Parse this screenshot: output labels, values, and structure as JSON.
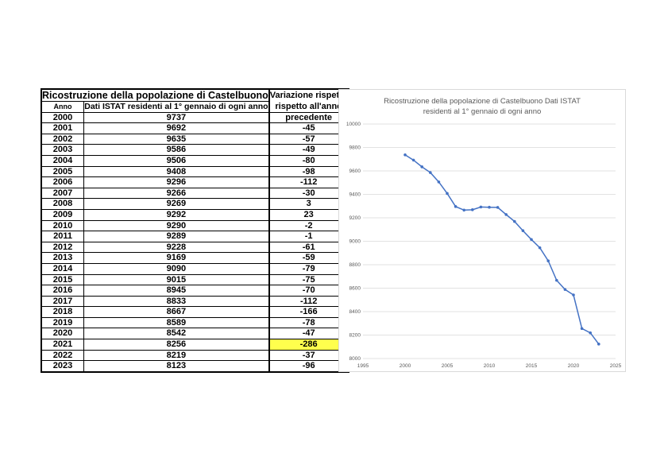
{
  "table": {
    "title": "Ricostruzione della popolazione di Castelbuono",
    "var_header_lines": [
      "Variazione rispetto",
      "rispetto all'anno",
      "precedente"
    ],
    "col_year": "Anno",
    "col_pop": "Dati ISTAT residenti al 1° gennaio di ogni anno",
    "rows": [
      {
        "year": "2000",
        "pop": "9737",
        "var": ""
      },
      {
        "year": "2001",
        "pop": "9692",
        "var": "-45"
      },
      {
        "year": "2002",
        "pop": "9635",
        "var": "-57"
      },
      {
        "year": "2003",
        "pop": "9586",
        "var": "-49"
      },
      {
        "year": "2004",
        "pop": "9506",
        "var": "-80"
      },
      {
        "year": "2005",
        "pop": "9408",
        "var": "-98"
      },
      {
        "year": "2006",
        "pop": "9296",
        "var": "-112"
      },
      {
        "year": "2007",
        "pop": "9266",
        "var": "-30"
      },
      {
        "year": "2008",
        "pop": "9269",
        "var": "3"
      },
      {
        "year": "2009",
        "pop": "9292",
        "var": "23"
      },
      {
        "year": "2010",
        "pop": "9290",
        "var": "-2"
      },
      {
        "year": "2011",
        "pop": "9289",
        "var": "-1"
      },
      {
        "year": "2012",
        "pop": "9228",
        "var": "-61"
      },
      {
        "year": "2013",
        "pop": "9169",
        "var": "-59"
      },
      {
        "year": "2014",
        "pop": "9090",
        "var": "-79"
      },
      {
        "year": "2015",
        "pop": "9015",
        "var": "-75"
      },
      {
        "year": "2016",
        "pop": "8945",
        "var": "-70"
      },
      {
        "year": "2017",
        "pop": "8833",
        "var": "-112"
      },
      {
        "year": "2018",
        "pop": "8667",
        "var": "-166"
      },
      {
        "year": "2019",
        "pop": "8589",
        "var": "-78"
      },
      {
        "year": "2020",
        "pop": "8542",
        "var": "-47"
      },
      {
        "year": "2021",
        "pop": "8256",
        "var": "-286"
      },
      {
        "year": "2022",
        "pop": "8219",
        "var": "-37"
      },
      {
        "year": "2023",
        "pop": "8123",
        "var": "-96"
      }
    ],
    "highlight_year": "2021",
    "highlight_color": "#ffff4d"
  },
  "chart_data": {
    "type": "scatter",
    "title_lines": [
      "Ricostruzione della popolazione  di Castelbuono   Dati ISTAT",
      "residenti al 1° gennaio di ogni anno"
    ],
    "xlabel": "",
    "ylabel": "",
    "xlim": [
      1995,
      2025
    ],
    "ylim": [
      8000,
      10000
    ],
    "x_ticks": [
      1995,
      2000,
      2005,
      2010,
      2015,
      2020,
      2025
    ],
    "y_ticks": [
      8000,
      8200,
      8400,
      8600,
      8800,
      9000,
      9200,
      9400,
      9600,
      9800,
      10000
    ],
    "grid": true,
    "legend": "none",
    "series": [
      {
        "color": "#4472c4",
        "x": [
          2000,
          2001,
          2002,
          2003,
          2004,
          2005,
          2006,
          2007,
          2008,
          2009,
          2010,
          2011,
          2012,
          2013,
          2014,
          2015,
          2016,
          2017,
          2018,
          2019,
          2020,
          2021,
          2022,
          2023
        ],
        "y": [
          9737,
          9692,
          9635,
          9586,
          9506,
          9408,
          9296,
          9266,
          9269,
          9292,
          9290,
          9289,
          9228,
          9169,
          9090,
          9015,
          8945,
          8833,
          8667,
          8589,
          8542,
          8256,
          8219,
          8123
        ]
      }
    ]
  }
}
